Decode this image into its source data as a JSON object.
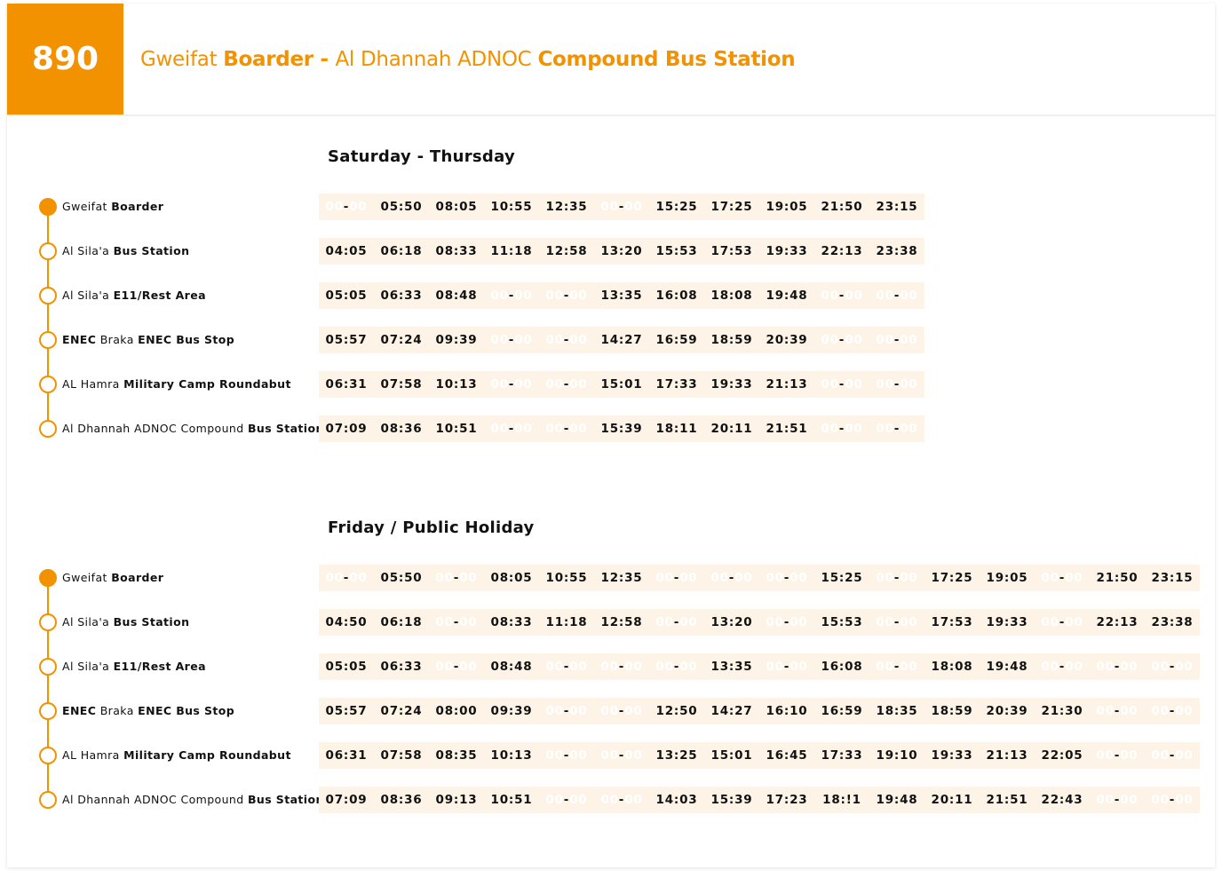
{
  "header": {
    "route_number": "890",
    "title": [
      {
        "text": "Gweifat ",
        "bold": false
      },
      {
        "text": "Boarder - ",
        "bold": true
      },
      {
        "text": "Al Dhannah ADNOC ",
        "bold": false
      },
      {
        "text": "Compound Bus Station",
        "bold": true
      }
    ]
  },
  "colors": {
    "accent": "#f39200",
    "row_bg": "#fdf3e6"
  },
  "stops": [
    [
      {
        "text": "Gweifat ",
        "bold": false
      },
      {
        "text": "Boarder",
        "bold": true
      }
    ],
    [
      {
        "text": "Al Sila'a ",
        "bold": false
      },
      {
        "text": "Bus Station",
        "bold": true
      }
    ],
    [
      {
        "text": "Al Sila'a ",
        "bold": false
      },
      {
        "text": "E11/Rest Area",
        "bold": true
      }
    ],
    [
      {
        "text": "ENEC",
        "bold": true
      },
      {
        "text": " Braka ",
        "bold": false
      },
      {
        "text": "ENEC Bus Stop",
        "bold": true
      }
    ],
    [
      {
        "text": "AL Hamra ",
        "bold": false
      },
      {
        "text": "Military Camp Roundabut",
        "bold": true
      }
    ],
    [
      {
        "text": "Al Dhannah ADNOC Compound ",
        "bold": false
      },
      {
        "text": "Bus Station",
        "bold": true
      }
    ]
  ],
  "schedules": [
    {
      "title": "Saturday - Thursday",
      "rows": [
        [
          "-",
          "05:50",
          "08:05",
          "10:55",
          "12:35",
          "-",
          "15:25",
          "17:25",
          "19:05",
          "21:50",
          "23:15"
        ],
        [
          "04:05",
          "06:18",
          "08:33",
          "11:18",
          "12:58",
          "13:20",
          "15:53",
          "17:53",
          "19:33",
          "22:13",
          "23:38"
        ],
        [
          "05:05",
          "06:33",
          "08:48",
          "-",
          "-",
          "13:35",
          "16:08",
          "18:08",
          "19:48",
          "-",
          "-"
        ],
        [
          "05:57",
          "07:24",
          "09:39",
          "-",
          "-",
          "14:27",
          "16:59",
          "18:59",
          "20:39",
          "-",
          "-"
        ],
        [
          "06:31",
          "07:58",
          "10:13",
          "-",
          "-",
          "15:01",
          "17:33",
          "19:33",
          "21:13",
          "-",
          "-"
        ],
        [
          "07:09",
          "08:36",
          "10:51",
          "-",
          "-",
          "15:39",
          "18:11",
          "20:11",
          "21:51",
          "-",
          "-"
        ]
      ]
    },
    {
      "title": "Friday /  Public Holiday",
      "rows": [
        [
          "-",
          "05:50",
          "-",
          "08:05",
          "10:55",
          "12:35",
          "-",
          "-",
          "-",
          "15:25",
          "-",
          "17:25",
          "19:05",
          "-",
          "21:50",
          "23:15"
        ],
        [
          "04:50",
          "06:18",
          "-",
          "08:33",
          "11:18",
          "12:58",
          "-",
          "13:20",
          "-",
          "15:53",
          "-",
          "17:53",
          "19:33",
          "-",
          "22:13",
          "23:38"
        ],
        [
          "05:05",
          "06:33",
          "-",
          "08:48",
          "-",
          "-",
          "-",
          "13:35",
          "-",
          "16:08",
          "-",
          "18:08",
          "19:48",
          "-",
          "-",
          "-"
        ],
        [
          "05:57",
          "07:24",
          "08:00",
          "09:39",
          "-",
          "-",
          "12:50",
          "14:27",
          "16:10",
          "16:59",
          "18:35",
          "18:59",
          "20:39",
          "21:30",
          "-",
          "-"
        ],
        [
          "06:31",
          "07:58",
          "08:35",
          "10:13",
          "-",
          "-",
          "13:25",
          "15:01",
          "16:45",
          "17:33",
          "19:10",
          "19:33",
          "21:13",
          "22:05",
          "-",
          "-"
        ],
        [
          "07:09",
          "08:36",
          "09:13",
          "10:51",
          "-",
          "-",
          "14:03",
          "15:39",
          "17:23",
          "18:!1",
          "19:48",
          "20:11",
          "21:51",
          "22:43",
          "-",
          "-"
        ]
      ]
    }
  ]
}
